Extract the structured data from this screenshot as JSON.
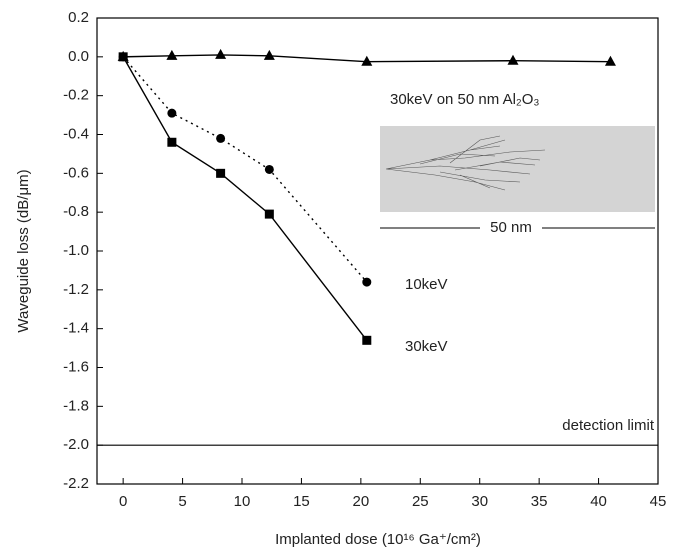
{
  "chart_data": {
    "type": "line",
    "x_label": "Implanted dose (10¹⁶ Ga⁺/cm²)",
    "y_label": "Waveguide loss (dB/μm)",
    "xlim": [
      -2.2,
      45
    ],
    "ylim": [
      -2.2,
      0.2
    ],
    "xticks": [
      0,
      5,
      10,
      15,
      20,
      25,
      30,
      35,
      40,
      45
    ],
    "yticks": [
      0.2,
      {
        "value": 0,
        "label": "0.0"
      },
      -0.2,
      -0.4,
      -0.6,
      -0.8,
      {
        "value": -1.0,
        "label": "-1.0"
      },
      -1.2,
      -1.4,
      -1.6,
      -1.8,
      {
        "value": -2.0,
        "label": "-2.0"
      },
      -2.2
    ],
    "series": [
      {
        "name": "30keV on 50 nm Al₂O₃",
        "color": "#000000",
        "marker": "triangle",
        "dashed": false,
        "x": [
          0,
          4.1,
          8.2,
          12.3,
          20.5,
          32.8,
          41
        ],
        "values": [
          0,
          0.005,
          0.01,
          0.005,
          -0.025,
          -0.02,
          -0.025
        ]
      },
      {
        "name": "10keV",
        "color": "#000000",
        "marker": "circle",
        "dashed": true,
        "x": [
          0,
          4.1,
          8.2,
          12.3,
          20.5
        ],
        "values": [
          0,
          -0.29,
          -0.42,
          -0.58,
          -1.16
        ]
      },
      {
        "name": "30keV",
        "color": "#000000",
        "marker": "square",
        "dashed": false,
        "x": [
          0,
          4.1,
          8.2,
          12.3,
          20.5
        ],
        "values": [
          0,
          -0.44,
          -0.6,
          -0.81,
          -1.46
        ]
      }
    ],
    "reference_line": {
      "text": "detection limit",
      "value": -2.0
    },
    "inset_scale_label": "50 nm"
  }
}
